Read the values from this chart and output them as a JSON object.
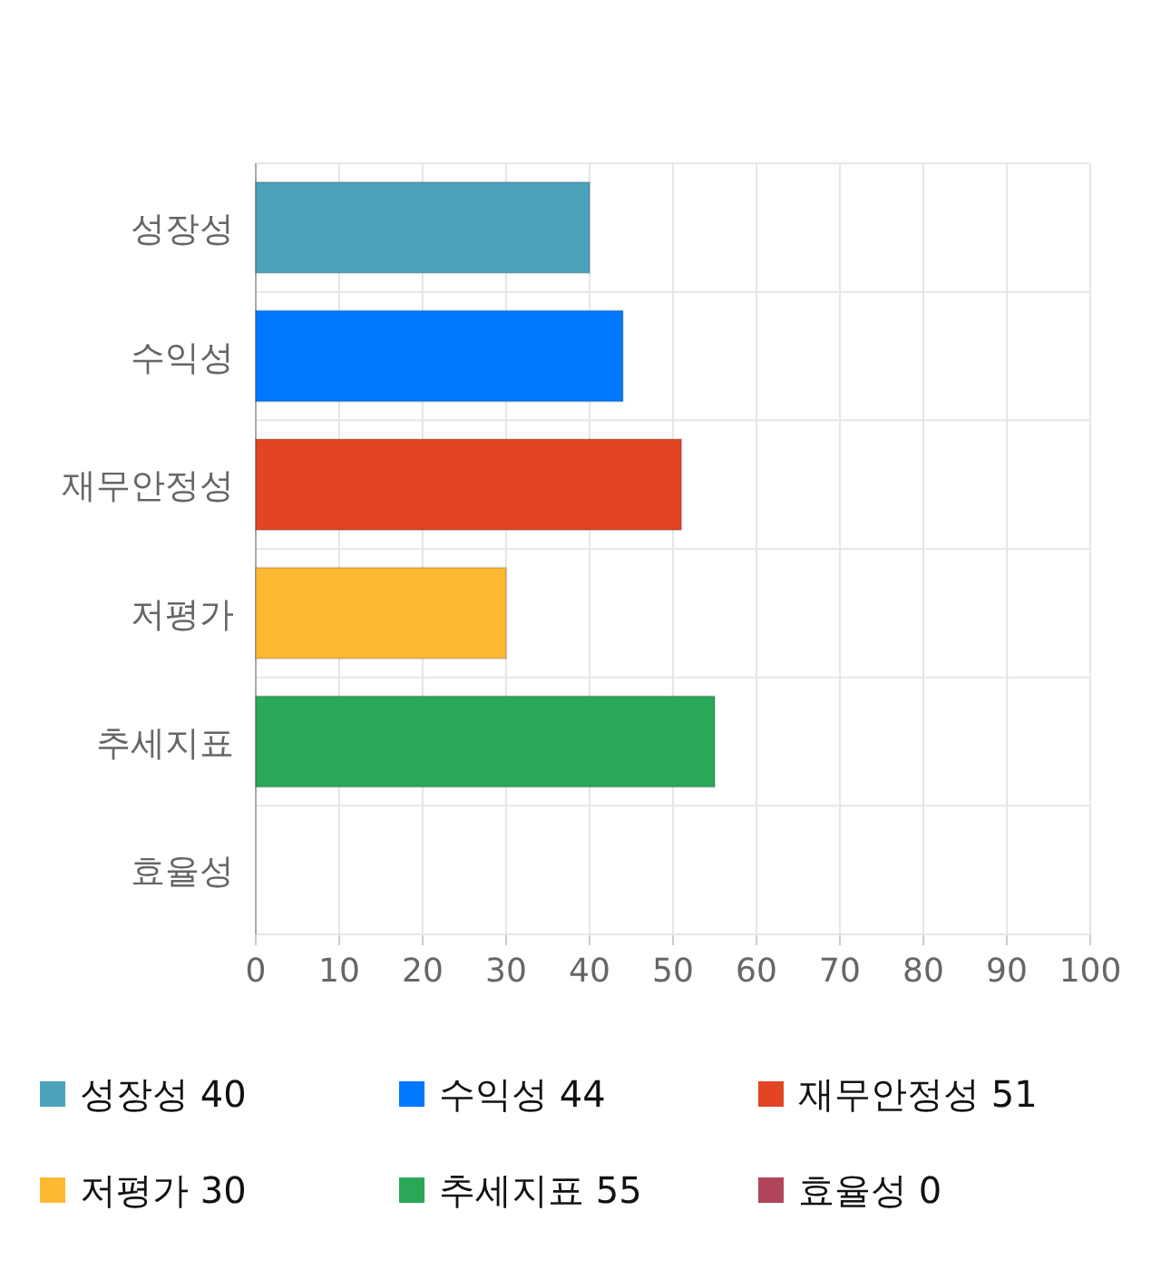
{
  "chart_data": {
    "type": "bar",
    "orientation": "horizontal",
    "stacked": true,
    "categories": [
      "성장성",
      "수익성",
      "재무안정성",
      "저평가",
      "추세지표",
      "효율성"
    ],
    "series": [
      {
        "name": "성장성 40",
        "color": "#4ba3bb",
        "values": [
          40,
          null,
          null,
          null,
          null,
          null
        ]
      },
      {
        "name": "수익성 44",
        "color": "#0078ff",
        "values": [
          null,
          44,
          null,
          null,
          null,
          null
        ]
      },
      {
        "name": "재무안정성 51",
        "color": "#e24424",
        "values": [
          null,
          null,
          51,
          null,
          null,
          null
        ]
      },
      {
        "name": "저평가 30",
        "color": "#ffb833",
        "values": [
          null,
          null,
          null,
          30,
          null,
          null
        ]
      },
      {
        "name": "추세지표 55",
        "color": "#2aa857",
        "values": [
          null,
          null,
          null,
          null,
          55,
          null
        ]
      },
      {
        "name": "효율성 0",
        "color": "#b0455a",
        "values": [
          null,
          null,
          null,
          null,
          null,
          0
        ]
      }
    ],
    "xlim": [
      0,
      100
    ],
    "xticks": [
      0,
      10,
      20,
      30,
      40,
      50,
      60,
      70,
      80,
      90,
      100
    ],
    "grid": true,
    "legend": "bottom"
  }
}
